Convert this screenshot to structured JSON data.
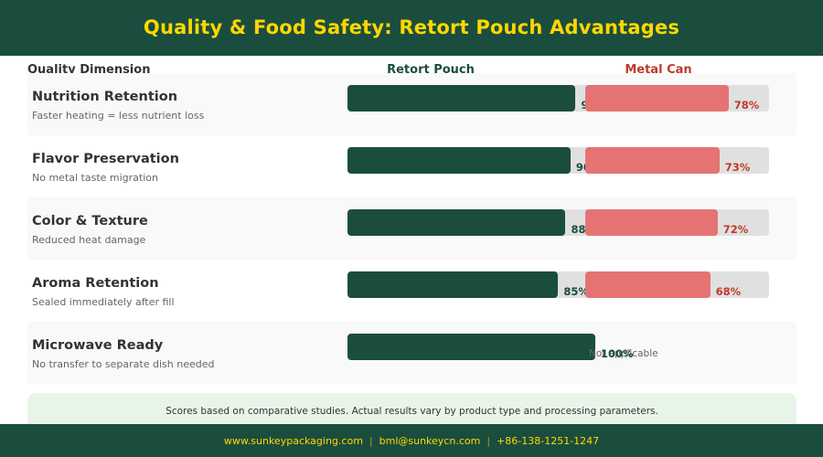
{
  "header": {
    "title": "Quality & Food Safety: Retort Pouch Advantages"
  },
  "columns": {
    "dimension": "Quality Dimension",
    "pouch": "Retort Pouch",
    "can": "Metal Can"
  },
  "colors": {
    "header_bg": "#1b4d3e",
    "title": "#ffd700",
    "pouch_bar": "#1b4d3e",
    "can_bar": "#e57373",
    "can_text": "#c0392b",
    "track": "#e0e0e0",
    "note_bg": "#e8f5e9"
  },
  "rows": [
    {
      "label": "Nutrition Retention",
      "sub": "Faster heating = less nutrient loss",
      "pouch": 92,
      "pouch_text": "92%",
      "can": 78,
      "can_text": "78%"
    },
    {
      "label": "Flavor Preservation",
      "sub": "No metal taste migration",
      "pouch": 90,
      "pouch_text": "90%",
      "can": 73,
      "can_text": "73%"
    },
    {
      "label": "Color & Texture",
      "sub": "Reduced heat damage",
      "pouch": 88,
      "pouch_text": "88%",
      "can": 72,
      "can_text": "72%"
    },
    {
      "label": "Aroma Retention",
      "sub": "Sealed immediately after fill",
      "pouch": 85,
      "pouch_text": "85%",
      "can": 68,
      "can_text": "68%"
    },
    {
      "label": "Microwave Ready",
      "sub": "No transfer to separate dish needed",
      "pouch": 100,
      "pouch_text": "100%",
      "can": null,
      "can_text": "Not applicable"
    }
  ],
  "note": "Scores based on comparative studies. Actual results vary by product type and processing parameters.",
  "footer": {
    "website": "www.sunkeypackaging.com",
    "email": "bml@sunkeycn.com",
    "phone": "+86-138-1251-1247",
    "separator": "|"
  },
  "chart_data": {
    "type": "bar",
    "orientation": "horizontal",
    "title": "Quality & Food Safety: Retort Pouch Advantages",
    "categories": [
      "Nutrition Retention",
      "Flavor Preservation",
      "Color & Texture",
      "Aroma Retention",
      "Microwave Ready"
    ],
    "series": [
      {
        "name": "Retort Pouch",
        "values": [
          92,
          90,
          88,
          85,
          100
        ],
        "color": "#1b4d3e"
      },
      {
        "name": "Metal Can",
        "values": [
          78,
          73,
          72,
          68,
          null
        ],
        "color": "#e57373"
      }
    ],
    "annotations": [
      "Metal Can / Microwave Ready: Not applicable"
    ],
    "xlabel": "",
    "ylabel": "Quality Dimension",
    "xlim": [
      0,
      100
    ],
    "unit": "%",
    "footnote": "Scores based on comparative studies. Actual results vary by product type and processing parameters."
  }
}
